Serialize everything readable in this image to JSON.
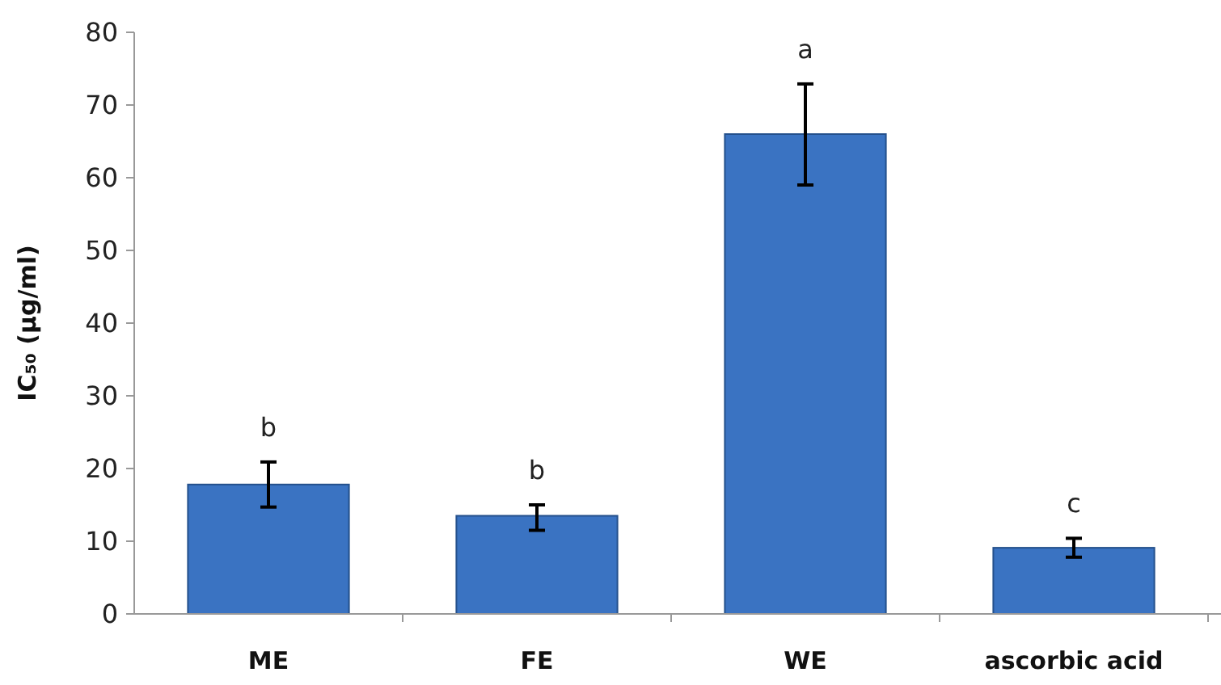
{
  "chart_data": {
    "type": "bar",
    "ylabel": "IC₅₀ (µg/ml)",
    "categories": [
      "ME",
      "FE",
      "WE",
      "ascorbic acid"
    ],
    "values": [
      17.8,
      13.5,
      66.0,
      9.1
    ],
    "errors": [
      [
        14.7,
        20.9
      ],
      [
        11.5,
        15.0
      ],
      [
        59.0,
        72.9
      ],
      [
        7.8,
        10.4
      ]
    ],
    "color": "#3a73c2",
    "ylim": [
      0,
      80
    ],
    "yticks": [
      0,
      10,
      20,
      30,
      40,
      50,
      60,
      70,
      80
    ],
    "grid": false,
    "annotations": [
      "b",
      "b",
      "a",
      "c"
    ]
  }
}
